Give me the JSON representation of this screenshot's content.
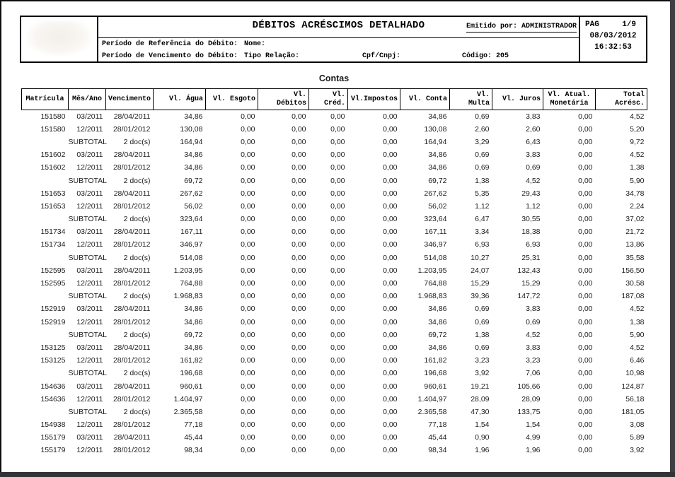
{
  "report": {
    "title": "DÉBITOS ACRÉSCIMOS DETALHADO",
    "emitted_by": "Emitido por: ADMINISTRADOR",
    "page_label": "PAG",
    "page_number": "1/9",
    "date": "08/03/2012",
    "time": "16:32:53",
    "filters": {
      "ref_period_label": "Período de Referência do Débito:",
      "venc_period_label": "Período de Vencimento do Débito:",
      "nome_label": "Nome:",
      "tipo_relacao_label": "Tipo Relação:",
      "cpf_cnpj_label": "Cpf/Cnpj:",
      "codigo_label": "Código:",
      "codigo_value": "205"
    }
  },
  "section_title": "Contas",
  "colors": {
    "page": "#ffffff",
    "text": "#000000",
    "frame_dark": "#323237",
    "frame_border": "#0d0d0d"
  },
  "table": {
    "headers": [
      "Matrícula",
      "Mês/Ano",
      "Vencimento",
      "Vl. Água",
      "Vl. Esgoto",
      "Vl. Débitos",
      "Vl. Créd.",
      "Vl.Impostos",
      "Vl. Conta",
      "Vl. Multa",
      "Vl. Juros",
      "Vl. Atual. Monetária",
      "Total Acrésc."
    ],
    "rows": [
      [
        "151580",
        "03/2011",
        "28/04/2011",
        "34,86",
        "0,00",
        "0,00",
        "0,00",
        "0,00",
        "34,86",
        "0,69",
        "3,83",
        "0,00",
        "4,52"
      ],
      [
        "151580",
        "12/2011",
        "28/01/2012",
        "130,08",
        "0,00",
        "0,00",
        "0,00",
        "0,00",
        "130,08",
        "2,60",
        "2,60",
        "0,00",
        "5,20"
      ],
      [
        "",
        "SUBTOTAL",
        "2 doc(s)",
        "164,94",
        "0,00",
        "0,00",
        "0,00",
        "0,00",
        "164,94",
        "3,29",
        "6,43",
        "0,00",
        "9,72"
      ],
      [
        "151602",
        "03/2011",
        "28/04/2011",
        "34,86",
        "0,00",
        "0,00",
        "0,00",
        "0,00",
        "34,86",
        "0,69",
        "3,83",
        "0,00",
        "4,52"
      ],
      [
        "151602",
        "12/2011",
        "28/01/2012",
        "34,86",
        "0,00",
        "0,00",
        "0,00",
        "0,00",
        "34,86",
        "0,69",
        "0,69",
        "0,00",
        "1,38"
      ],
      [
        "",
        "SUBTOTAL",
        "2 doc(s)",
        "69,72",
        "0,00",
        "0,00",
        "0,00",
        "0,00",
        "69,72",
        "1,38",
        "4,52",
        "0,00",
        "5,90"
      ],
      [
        "151653",
        "03/2011",
        "28/04/2011",
        "267,62",
        "0,00",
        "0,00",
        "0,00",
        "0,00",
        "267,62",
        "5,35",
        "29,43",
        "0,00",
        "34,78"
      ],
      [
        "151653",
        "12/2011",
        "28/01/2012",
        "56,02",
        "0,00",
        "0,00",
        "0,00",
        "0,00",
        "56,02",
        "1,12",
        "1,12",
        "0,00",
        "2,24"
      ],
      [
        "",
        "SUBTOTAL",
        "2 doc(s)",
        "323,64",
        "0,00",
        "0,00",
        "0,00",
        "0,00",
        "323,64",
        "6,47",
        "30,55",
        "0,00",
        "37,02"
      ],
      [
        "151734",
        "03/2011",
        "28/04/2011",
        "167,11",
        "0,00",
        "0,00",
        "0,00",
        "0,00",
        "167,11",
        "3,34",
        "18,38",
        "0,00",
        "21,72"
      ],
      [
        "151734",
        "12/2011",
        "28/01/2012",
        "346,97",
        "0,00",
        "0,00",
        "0,00",
        "0,00",
        "346,97",
        "6,93",
        "6,93",
        "0,00",
        "13,86"
      ],
      [
        "",
        "SUBTOTAL",
        "2 doc(s)",
        "514,08",
        "0,00",
        "0,00",
        "0,00",
        "0,00",
        "514,08",
        "10,27",
        "25,31",
        "0,00",
        "35,58"
      ],
      [
        "152595",
        "03/2011",
        "28/04/2011",
        "1.203,95",
        "0,00",
        "0,00",
        "0,00",
        "0,00",
        "1.203,95",
        "24,07",
        "132,43",
        "0,00",
        "156,50"
      ],
      [
        "152595",
        "12/2011",
        "28/01/2012",
        "764,88",
        "0,00",
        "0,00",
        "0,00",
        "0,00",
        "764,88",
        "15,29",
        "15,29",
        "0,00",
        "30,58"
      ],
      [
        "",
        "SUBTOTAL",
        "2 doc(s)",
        "1.968,83",
        "0,00",
        "0,00",
        "0,00",
        "0,00",
        "1.968,83",
        "39,36",
        "147,72",
        "0,00",
        "187,08"
      ],
      [
        "152919",
        "03/2011",
        "28/04/2011",
        "34,86",
        "0,00",
        "0,00",
        "0,00",
        "0,00",
        "34,86",
        "0,69",
        "3,83",
        "0,00",
        "4,52"
      ],
      [
        "152919",
        "12/2011",
        "28/01/2012",
        "34,86",
        "0,00",
        "0,00",
        "0,00",
        "0,00",
        "34,86",
        "0,69",
        "0,69",
        "0,00",
        "1,38"
      ],
      [
        "",
        "SUBTOTAL",
        "2 doc(s)",
        "69,72",
        "0,00",
        "0,00",
        "0,00",
        "0,00",
        "69,72",
        "1,38",
        "4,52",
        "0,00",
        "5,90"
      ],
      [
        "153125",
        "03/2011",
        "28/04/2011",
        "34,86",
        "0,00",
        "0,00",
        "0,00",
        "0,00",
        "34,86",
        "0,69",
        "3,83",
        "0,00",
        "4,52"
      ],
      [
        "153125",
        "12/2011",
        "28/01/2012",
        "161,82",
        "0,00",
        "0,00",
        "0,00",
        "0,00",
        "161,82",
        "3,23",
        "3,23",
        "0,00",
        "6,46"
      ],
      [
        "",
        "SUBTOTAL",
        "2 doc(s)",
        "196,68",
        "0,00",
        "0,00",
        "0,00",
        "0,00",
        "196,68",
        "3,92",
        "7,06",
        "0,00",
        "10,98"
      ],
      [
        "154636",
        "03/2011",
        "28/04/2011",
        "960,61",
        "0,00",
        "0,00",
        "0,00",
        "0,00",
        "960,61",
        "19,21",
        "105,66",
        "0,00",
        "124,87"
      ],
      [
        "154636",
        "12/2011",
        "28/01/2012",
        "1.404,97",
        "0,00",
        "0,00",
        "0,00",
        "0,00",
        "1.404,97",
        "28,09",
        "28,09",
        "0,00",
        "56,18"
      ],
      [
        "",
        "SUBTOTAL",
        "2 doc(s)",
        "2.365,58",
        "0,00",
        "0,00",
        "0,00",
        "0,00",
        "2.365,58",
        "47,30",
        "133,75",
        "0,00",
        "181,05"
      ],
      [
        "154938",
        "12/2011",
        "28/01/2012",
        "77,18",
        "0,00",
        "0,00",
        "0,00",
        "0,00",
        "77,18",
        "1,54",
        "1,54",
        "0,00",
        "3,08"
      ],
      [
        "155179",
        "03/2011",
        "28/04/2011",
        "45,44",
        "0,00",
        "0,00",
        "0,00",
        "0,00",
        "45,44",
        "0,90",
        "4,99",
        "0,00",
        "5,89"
      ],
      [
        "155179",
        "12/2011",
        "28/01/2012",
        "98,34",
        "0,00",
        "0,00",
        "0,00",
        "0,00",
        "98,34",
        "1,96",
        "1,96",
        "0,00",
        "3,92"
      ]
    ]
  }
}
